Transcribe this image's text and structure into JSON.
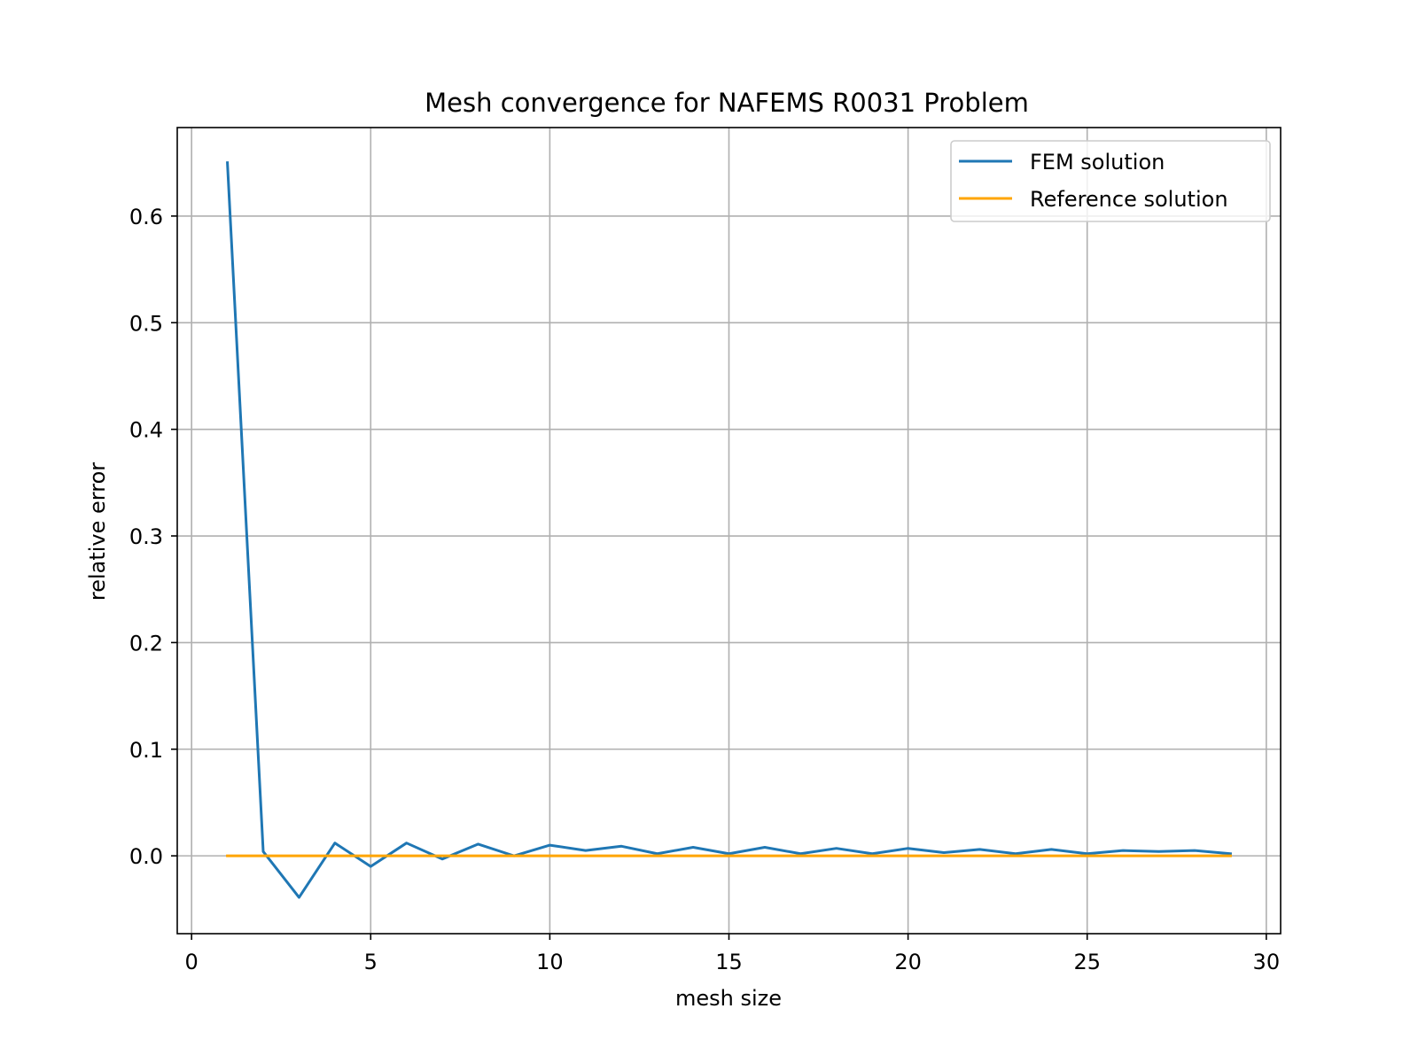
{
  "chart_data": {
    "type": "line",
    "title": "Mesh convergence for NAFEMS R0031 Problem",
    "xlabel": "mesh size",
    "ylabel": "relative error",
    "xlim": [
      -0.4,
      30.4
    ],
    "ylim": [
      -0.073,
      0.683
    ],
    "xticks": [
      0,
      5,
      10,
      15,
      20,
      25,
      30
    ],
    "xtick_labels": [
      "0",
      "5",
      "10",
      "15",
      "20",
      "25",
      "30"
    ],
    "yticks": [
      0.0,
      0.1,
      0.2,
      0.3,
      0.4,
      0.5,
      0.6
    ],
    "ytick_labels": [
      "0.0",
      "0.1",
      "0.2",
      "0.3",
      "0.4",
      "0.5",
      "0.6"
    ],
    "grid": true,
    "legend_position": "top-right",
    "series": [
      {
        "name": "FEM solution",
        "color": "#1f77b4",
        "x": [
          1,
          2,
          3,
          4,
          5,
          6,
          7,
          8,
          9,
          10,
          11,
          12,
          13,
          14,
          15,
          16,
          17,
          18,
          19,
          20,
          21,
          22,
          23,
          24,
          25,
          26,
          27,
          28,
          29
        ],
        "values": [
          0.65,
          0.004,
          -0.039,
          0.012,
          -0.01,
          0.012,
          -0.003,
          0.011,
          0.0,
          0.01,
          0.005,
          0.009,
          0.002,
          0.008,
          0.002,
          0.008,
          0.002,
          0.007,
          0.002,
          0.007,
          0.003,
          0.006,
          0.002,
          0.006,
          0.002,
          0.005,
          0.004,
          0.005,
          0.002
        ]
      },
      {
        "name": "Reference solution",
        "color": "#ffa500",
        "x": [
          1,
          2,
          3,
          4,
          5,
          6,
          7,
          8,
          9,
          10,
          11,
          12,
          13,
          14,
          15,
          16,
          17,
          18,
          19,
          20,
          21,
          22,
          23,
          24,
          25,
          26,
          27,
          28,
          29
        ],
        "values": [
          0,
          0,
          0,
          0,
          0,
          0,
          0,
          0,
          0,
          0,
          0,
          0,
          0,
          0,
          0,
          0,
          0,
          0,
          0,
          0,
          0,
          0,
          0,
          0,
          0,
          0,
          0,
          0,
          0
        ]
      }
    ]
  }
}
